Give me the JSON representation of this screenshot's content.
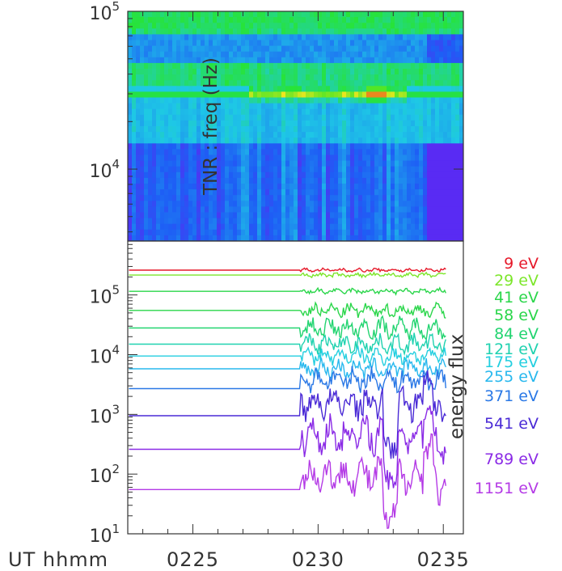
{
  "chart_data": [
    {
      "type": "heatmap",
      "ylabel": "TNR : freq (Hz)",
      "y_scale": "log",
      "ylim": [
        3500,
        100000
      ],
      "y_ticks": [
        {
          "base": "10",
          "exp": "4",
          "value": 10000
        },
        {
          "base": "10",
          "exp": "5",
          "value": 100000
        }
      ],
      "xlim": [
        22.4,
        35.8
      ],
      "colors": {
        "low": "#6a1cf2",
        "mid_low": "#1e5ef5",
        "mid": "#1ec8e6",
        "mid_high": "#28e628",
        "high": "#f0e61e",
        "peak": "#e61e1e"
      },
      "bands": [
        {
          "freq_range": [
            15000,
            100000
          ],
          "level": "upper"
        },
        {
          "freq_range": [
            3500,
            15000
          ],
          "level": "lower"
        }
      ],
      "bright_line_freq": 30000
    },
    {
      "type": "line",
      "ylabel": "energy flux",
      "y_scale": "log",
      "ylim": [
        10,
        800000
      ],
      "y_ticks": [
        {
          "base": "10",
          "exp": "1",
          "value": 10
        },
        {
          "base": "10",
          "exp": "2",
          "value": 100
        },
        {
          "base": "10",
          "exp": "3",
          "value": 1000
        },
        {
          "base": "10",
          "exp": "4",
          "value": 10000
        },
        {
          "base": "10",
          "exp": "5",
          "value": 100000
        }
      ],
      "xlim": [
        22.4,
        35.8
      ],
      "x_label": "UT hhmm",
      "x_ticks": [
        {
          "label": "0225",
          "value": 25
        },
        {
          "label": "0230",
          "value": 30
        },
        {
          "label": "0235",
          "value": 35
        }
      ],
      "active_start": 29.3,
      "x_end": 35.1,
      "series": [
        {
          "name": "9 eV",
          "color": "#e6192a",
          "base": 260000,
          "amp": 0.04
        },
        {
          "name": "29 eV",
          "color": "#7ce62a",
          "base": 215000,
          "amp": 0.05
        },
        {
          "name": "41 eV",
          "color": "#2ad64a",
          "base": 115000,
          "amp": 0.06
        },
        {
          "name": "58 eV",
          "color": "#2ad64a",
          "base": 55000,
          "amp": 0.15
        },
        {
          "name": "84 eV",
          "color": "#22d470",
          "base": 28000,
          "amp": 0.22
        },
        {
          "name": "121 eV",
          "color": "#20d2b0",
          "base": 15000,
          "amp": 0.2
        },
        {
          "name": "175 eV",
          "color": "#24cfe0",
          "base": 9500,
          "amp": 0.18
        },
        {
          "name": "255 eV",
          "color": "#28b8ee",
          "base": 5800,
          "amp": 0.2
        },
        {
          "name": "371 eV",
          "color": "#2a78e6",
          "base": 2700,
          "amp": 0.25
        },
        {
          "name": "541 eV",
          "color": "#4a2ad6",
          "base": 950,
          "amp": 0.35
        },
        {
          "name": "789 eV",
          "color": "#8a2ae6",
          "base": 260,
          "amp": 0.4
        },
        {
          "name": "1151 eV",
          "color": "#b43ae6",
          "base": 55,
          "amp": 0.4
        }
      ]
    }
  ]
}
